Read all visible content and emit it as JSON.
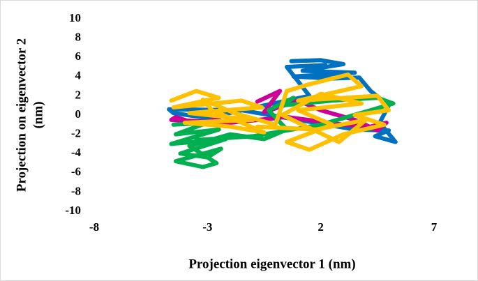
{
  "chart_data": {
    "type": "line",
    "xlabel": "Projection eigenvector 1 (nm)",
    "ylabel": [
      "Projection on eigenvector 2",
      "(nm)"
    ],
    "xlim": [
      -8,
      7
    ],
    "ylim": [
      -10,
      10
    ],
    "xticks": [
      -8,
      -3,
      2,
      7
    ],
    "yticks": [
      -10,
      -8,
      -6,
      -4,
      -2,
      0,
      2,
      4,
      6,
      8,
      10
    ],
    "grid": false,
    "series": [
      {
        "color": "#0070c0",
        "x": [
          0.7,
          2.0,
          3.0,
          1.2,
          3.5,
          0.8,
          2.5,
          3.7,
          4.2,
          5.0,
          4.6,
          5.3,
          4.4,
          5.0,
          3.5,
          1.0,
          -1.5,
          -4.7,
          -4.5,
          -3.0,
          -0.5,
          1.5,
          0.5,
          2.2
        ],
        "values": [
          5.6,
          5.7,
          5.3,
          4.6,
          4.4,
          4.0,
          3.8,
          3.9,
          2.5,
          1.0,
          -0.8,
          -2.8,
          -2.2,
          -1.6,
          -1.5,
          -0.5,
          0.5,
          0.6,
          0.2,
          -0.3,
          1.0,
          2.0,
          5.0,
          5.2
        ]
      },
      {
        "color": "#cc0099",
        "x": [
          -0.8,
          0.2,
          -0.5,
          1.0,
          2.0,
          3.5,
          4.5,
          4.9,
          4.2,
          3.0,
          0.5,
          -2.0,
          -4.6,
          -4.4,
          -3.5,
          -2.5
        ],
        "values": [
          1.4,
          2.5,
          0.3,
          1.5,
          0.5,
          -0.5,
          -1.6,
          -0.8,
          -1.2,
          -1.0,
          -0.2,
          -0.8,
          -0.5,
          -0.2,
          -0.9,
          -0.4
        ]
      },
      {
        "color": "#00b050",
        "x": [
          -4.5,
          -3.0,
          -4.4,
          -2.5,
          -4.6,
          -2.2,
          -4.2,
          -3.0,
          -2.4,
          -4.4,
          -3.2,
          -2.6,
          -3.8,
          -2.0,
          -0.5,
          0.5,
          -0.3,
          0.8,
          0.3,
          2.5,
          4.5,
          5.2,
          4.2,
          2.0,
          -1.0,
          -3.5
        ],
        "values": [
          -1.0,
          -0.8,
          -2.0,
          -1.5,
          -3.0,
          -2.5,
          -4.0,
          -4.4,
          -3.5,
          -4.8,
          -5.4,
          -5.0,
          -3.2,
          -2.0,
          -2.5,
          -1.5,
          0.5,
          1.8,
          1.0,
          1.5,
          1.8,
          1.2,
          0.5,
          -1.0,
          -2.2,
          -2.6
        ]
      },
      {
        "color": "#ffc000",
        "x": [
          -4.6,
          -3.5,
          -2.5,
          -4.5,
          -1.5,
          -0.6,
          -3.8,
          -1.0,
          -4.0,
          -2.0,
          -0.5,
          -2.8,
          -3.2,
          -1.8,
          0.0,
          0.5,
          1.5,
          2.5,
          3.2,
          3.8,
          1.0,
          4.5,
          5.0,
          3.5,
          4.8,
          3.0,
          1.5,
          0.5,
          2.5,
          1.0,
          3.8,
          2.0,
          0.3,
          2.8,
          4.0,
          1.8,
          -0.8
        ],
        "values": [
          1.5,
          2.5,
          1.8,
          0.8,
          1.5,
          0.8,
          0.2,
          -0.5,
          -0.8,
          -1.2,
          -1.8,
          0.5,
          1.6,
          0.2,
          -1.0,
          2.5,
          3.2,
          3.8,
          4.2,
          3.0,
          1.5,
          2.0,
          0.5,
          0.0,
          -1.0,
          -2.0,
          -3.6,
          -2.8,
          -1.0,
          0.5,
          1.2,
          2.2,
          0.0,
          -2.8,
          -0.5,
          -1.5,
          -1.2
        ]
      }
    ]
  }
}
